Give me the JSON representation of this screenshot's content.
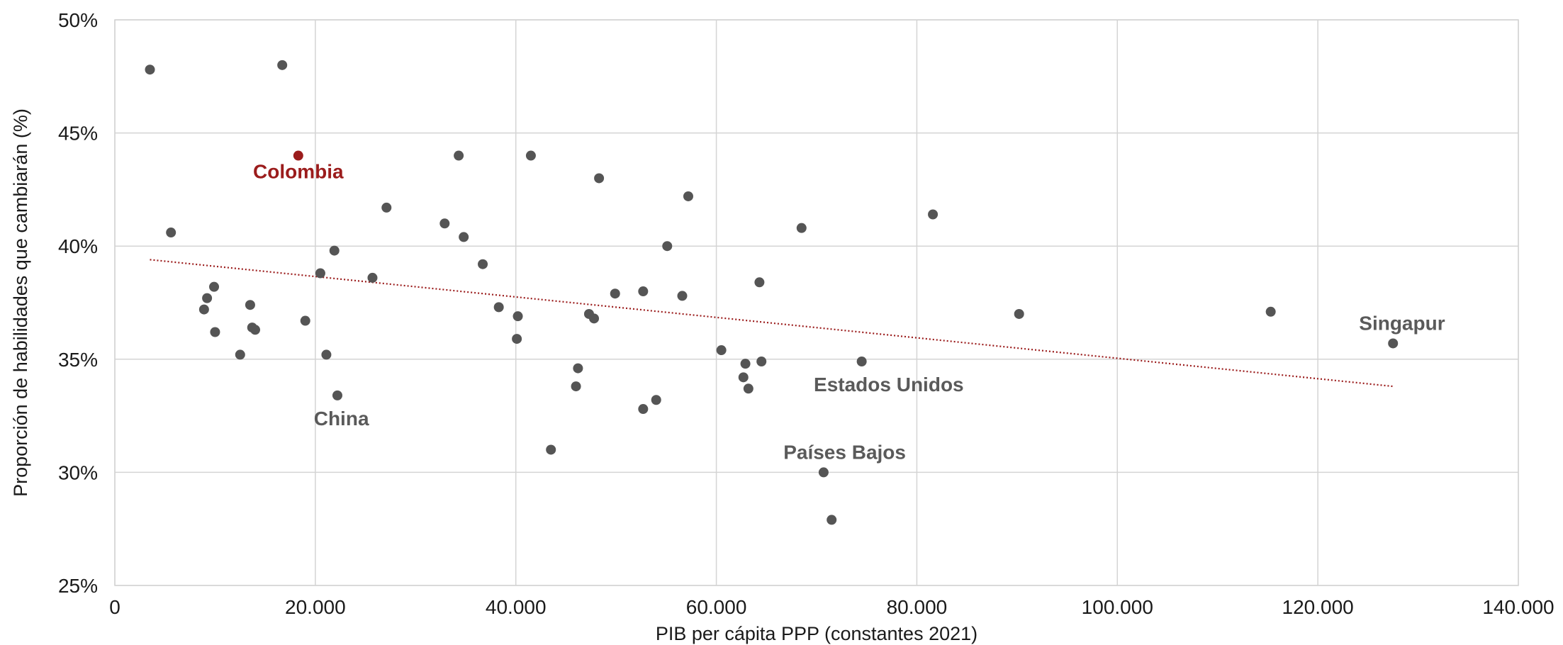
{
  "chart_data": {
    "type": "scatter",
    "xlabel": "PIB per cápita PPP (constantes 2021)",
    "ylabel": "Proporción de habilidades que cambiarán (%)",
    "xlim": [
      0,
      140000
    ],
    "ylim": [
      25,
      50
    ],
    "x_ticks": [
      0,
      20000,
      40000,
      60000,
      80000,
      100000,
      120000,
      140000
    ],
    "x_tick_labels": [
      "0",
      "20.000",
      "40.000",
      "60.000",
      "80.000",
      "100.000",
      "120.000",
      "140.000"
    ],
    "y_ticks": [
      25,
      30,
      35,
      40,
      45,
      50
    ],
    "y_tick_labels": [
      "25%",
      "30%",
      "35%",
      "40%",
      "45%",
      "50%"
    ],
    "grid": true,
    "colors": {
      "points": "#555555",
      "highlight": "#9b1c1c",
      "trend": "#9b1c1c",
      "grid": "#d4d4d4",
      "label": "#5a5a5a"
    },
    "points": [
      {
        "x": 3500,
        "y": 47.8
      },
      {
        "x": 16700,
        "y": 48.0
      },
      {
        "x": 5600,
        "y": 40.6
      },
      {
        "x": 9200,
        "y": 37.7
      },
      {
        "x": 9900,
        "y": 38.2
      },
      {
        "x": 8900,
        "y": 37.2
      },
      {
        "x": 10000,
        "y": 36.2
      },
      {
        "x": 12500,
        "y": 35.2
      },
      {
        "x": 13500,
        "y": 37.4
      },
      {
        "x": 13700,
        "y": 36.4
      },
      {
        "x": 14000,
        "y": 36.3
      },
      {
        "x": 19000,
        "y": 36.7
      },
      {
        "x": 20500,
        "y": 38.8
      },
      {
        "x": 21900,
        "y": 39.8
      },
      {
        "x": 21100,
        "y": 35.2
      },
      {
        "x": 22200,
        "y": 33.4
      },
      {
        "x": 25700,
        "y": 38.6
      },
      {
        "x": 27100,
        "y": 41.7
      },
      {
        "x": 32900,
        "y": 41.0
      },
      {
        "x": 34300,
        "y": 44.0
      },
      {
        "x": 34800,
        "y": 40.4
      },
      {
        "x": 36700,
        "y": 39.2
      },
      {
        "x": 38300,
        "y": 37.3
      },
      {
        "x": 40200,
        "y": 36.9
      },
      {
        "x": 40100,
        "y": 35.9
      },
      {
        "x": 41500,
        "y": 44.0
      },
      {
        "x": 43500,
        "y": 31.0
      },
      {
        "x": 46000,
        "y": 33.8
      },
      {
        "x": 46200,
        "y": 34.6
      },
      {
        "x": 47300,
        "y": 37.0
      },
      {
        "x": 47800,
        "y": 36.8
      },
      {
        "x": 48300,
        "y": 43.0
      },
      {
        "x": 49900,
        "y": 37.9
      },
      {
        "x": 52700,
        "y": 38.0
      },
      {
        "x": 52700,
        "y": 32.8
      },
      {
        "x": 54000,
        "y": 33.2
      },
      {
        "x": 55100,
        "y": 40.0
      },
      {
        "x": 56600,
        "y": 37.8
      },
      {
        "x": 57200,
        "y": 42.2
      },
      {
        "x": 60500,
        "y": 35.4
      },
      {
        "x": 62700,
        "y": 34.2
      },
      {
        "x": 62900,
        "y": 34.8
      },
      {
        "x": 63200,
        "y": 33.7
      },
      {
        "x": 64300,
        "y": 38.4
      },
      {
        "x": 64500,
        "y": 34.9
      },
      {
        "x": 68500,
        "y": 40.8
      },
      {
        "x": 70700,
        "y": 30.0
      },
      {
        "x": 71500,
        "y": 27.9
      },
      {
        "x": 74500,
        "y": 34.9
      },
      {
        "x": 81600,
        "y": 41.4
      },
      {
        "x": 90200,
        "y": 37.0
      },
      {
        "x": 115300,
        "y": 37.1
      },
      {
        "x": 127500,
        "y": 35.7
      }
    ],
    "highlight_point": {
      "label": "Colombia",
      "x": 18300,
      "y": 44.0
    },
    "trendline": {
      "x": [
        3500,
        127500
      ],
      "y": [
        39.4,
        33.8
      ]
    },
    "annotations": [
      {
        "label": "China",
        "x": 22600,
        "y": 32.4
      },
      {
        "label": "Estados Unidos",
        "x": 77200,
        "y": 33.9
      },
      {
        "label": "Países Bajos",
        "x": 72800,
        "y": 30.9
      },
      {
        "label": "Singapur",
        "x": 128400,
        "y": 36.6
      }
    ]
  }
}
